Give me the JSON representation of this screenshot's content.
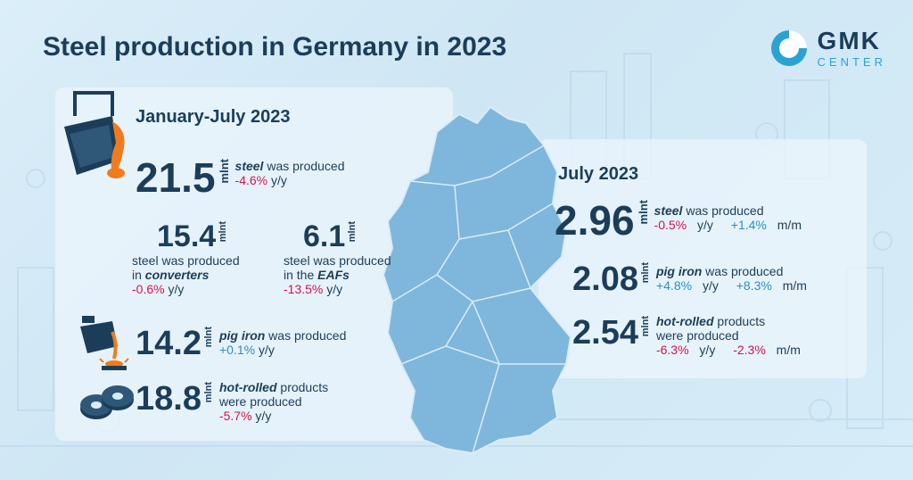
{
  "title": "Steel production in Germany in 2023",
  "logo": {
    "name": "GMK",
    "sub": "CENTER"
  },
  "unit": "mlnt",
  "left": {
    "period": "January-July 2023",
    "steel": {
      "value": "21.5",
      "label_em": "steel",
      "label_rest": " was produced",
      "yy": "-4.6%",
      "yy_suffix": " y/y"
    },
    "converters": {
      "value": "15.4",
      "line1": "steel was produced",
      "line2_pre": "in ",
      "line2_em": "converters",
      "yy": "-0.6%",
      "yy_suffix": " y/y"
    },
    "eafs": {
      "value": "6.1",
      "line1": "steel was produced",
      "line2_pre": "in the ",
      "line2_em": "EAFs",
      "yy": "-13.5%",
      "yy_suffix": " y/y"
    },
    "pig_iron": {
      "value": "14.2",
      "label_em": "pig iron",
      "label_rest": " was produced",
      "yy": "+0.1%",
      "yy_suffix": " y/y"
    },
    "hot_rolled": {
      "value": "18.8",
      "label_em": "hot-rolled",
      "label_rest": " products",
      "line2": "were produced",
      "yy": "-5.7%",
      "yy_suffix": " y/y"
    }
  },
  "right": {
    "period": "July 2023",
    "steel": {
      "value": "2.96",
      "label_em": "steel",
      "label_rest": " was produced",
      "yy": "-0.5%",
      "yy_suffix": " y/y",
      "mm": "+1.4%",
      "mm_suffix": " m/m"
    },
    "pig_iron": {
      "value": "2.08",
      "label_em": "pig iron",
      "label_rest": " was produced",
      "yy": "+4.8%",
      "yy_suffix": " y/y",
      "mm": "+8.3%",
      "mm_suffix": " m/m"
    },
    "hot_rolled": {
      "value": "2.54",
      "label_em": "hot-rolled",
      "label_rest": " products",
      "line2": "were produced",
      "yy": "-6.3%",
      "yy_suffix": " y/y",
      "mm": "-2.3%",
      "mm_suffix": " m/m"
    }
  },
  "colors": {
    "navy": "#1b3d5a",
    "negative": "#d2144a",
    "positive": "#2b8fc4",
    "map": "#7fb6dc",
    "accent": "#2aa3d4"
  },
  "icons": [
    "ladle-icon",
    "pig-iron-pour-icon",
    "steel-coils-icon",
    "gmk-logo-icon"
  ]
}
